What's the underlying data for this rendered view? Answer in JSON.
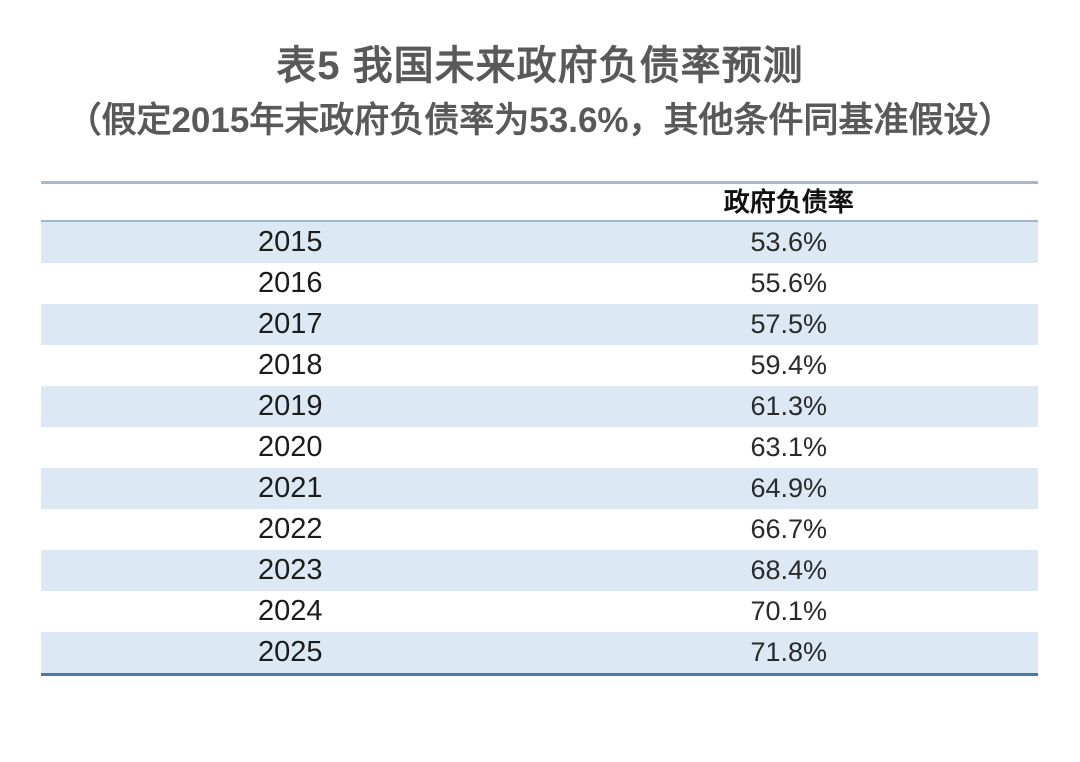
{
  "title": "表5 我国未来政府负债率预测",
  "subtitle": "（假定2015年末政府负债率为53.6%，其他条件同基准假设）",
  "table": {
    "columns": [
      "",
      "政府负债率"
    ],
    "rows": [
      {
        "year": "2015",
        "value": "53.6%"
      },
      {
        "year": "2016",
        "value": "55.6%"
      },
      {
        "year": "2017",
        "value": "57.5%"
      },
      {
        "year": "2018",
        "value": "59.4%"
      },
      {
        "year": "2019",
        "value": "61.3%"
      },
      {
        "year": "2020",
        "value": "63.1%"
      },
      {
        "year": "2021",
        "value": "64.9%"
      },
      {
        "year": "2022",
        "value": "66.7%"
      },
      {
        "year": "2023",
        "value": "68.4%"
      },
      {
        "year": "2024",
        "value": "70.1%"
      },
      {
        "year": "2025",
        "value": "71.8%"
      }
    ]
  },
  "colors": {
    "row_band": "#dce8f4",
    "top_rule": "#a7bacd",
    "header_rule": "#a2b6cb",
    "bottom_rule": "#4a78a8",
    "heading_text": "#595959"
  }
}
